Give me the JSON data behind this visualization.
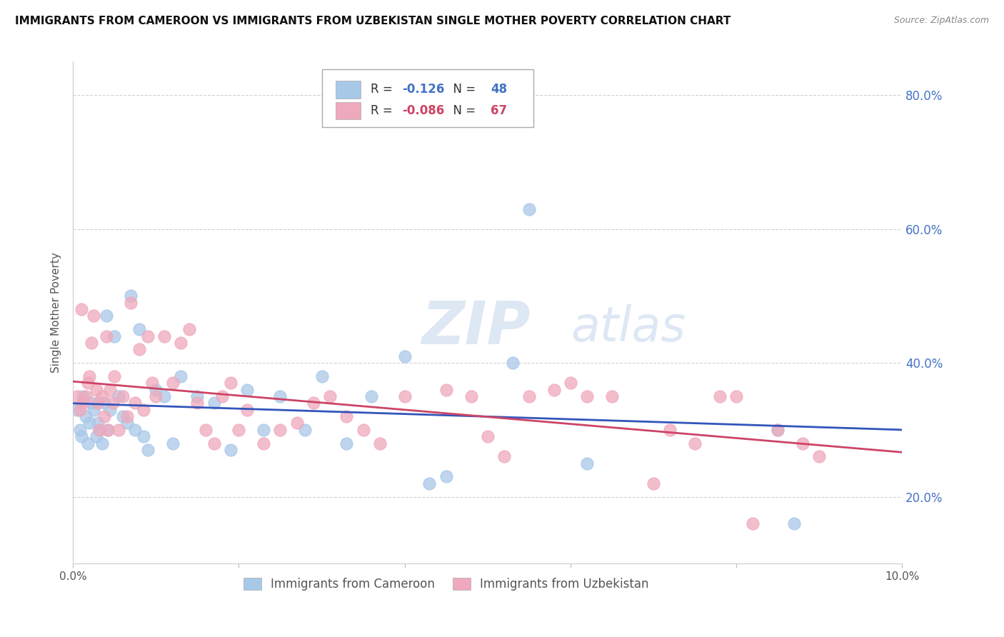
{
  "title": "IMMIGRANTS FROM CAMEROON VS IMMIGRANTS FROM UZBEKISTAN SINGLE MOTHER POVERTY CORRELATION CHART",
  "source": "Source: ZipAtlas.com",
  "ylabel": "Single Mother Poverty",
  "xlim": [
    0.0,
    10.0
  ],
  "ylim": [
    10.0,
    85.0
  ],
  "y_ticks_right": [
    20.0,
    40.0,
    60.0,
    80.0
  ],
  "y_tick_labels_right": [
    "20.0%",
    "40.0%",
    "60.0%",
    "80.0%"
  ],
  "cameroon_R": -0.126,
  "cameroon_N": 48,
  "uzbekistan_R": -0.086,
  "uzbekistan_N": 67,
  "cameroon_color": "#A8C8E8",
  "uzbekistan_color": "#F0A8BC",
  "cameroon_line_color": "#3355BB",
  "uzbekistan_line_color": "#CC4466",
  "watermark": "ZIPatlas",
  "watermark_color": "#C8D8EE",
  "legend_label_cameroon": "Immigrants from Cameroon",
  "legend_label_uzbekistan": "Immigrants from Uzbekistan",
  "cameroon_x": [
    0.05,
    0.08,
    0.1,
    0.12,
    0.15,
    0.18,
    0.2,
    0.22,
    0.25,
    0.28,
    0.3,
    0.32,
    0.35,
    0.38,
    0.4,
    0.42,
    0.45,
    0.5,
    0.55,
    0.6,
    0.65,
    0.7,
    0.75,
    0.8,
    0.85,
    0.9,
    1.0,
    1.1,
    1.2,
    1.3,
    1.5,
    1.7,
    1.9,
    2.1,
    2.3,
    2.5,
    2.8,
    3.0,
    3.3,
    3.6,
    4.0,
    4.3,
    4.5,
    5.3,
    5.5,
    6.2,
    8.5,
    8.7
  ],
  "cameroon_y": [
    33,
    30,
    29,
    35,
    32,
    28,
    31,
    34,
    33,
    29,
    31,
    30,
    28,
    34,
    47,
    30,
    33,
    44,
    35,
    32,
    31,
    50,
    30,
    45,
    29,
    27,
    36,
    35,
    28,
    38,
    35,
    34,
    27,
    36,
    30,
    35,
    30,
    38,
    28,
    35,
    41,
    22,
    23,
    40,
    63,
    25,
    30,
    16
  ],
  "uzbekistan_x": [
    0.05,
    0.08,
    0.1,
    0.12,
    0.15,
    0.18,
    0.2,
    0.22,
    0.25,
    0.28,
    0.3,
    0.32,
    0.35,
    0.38,
    0.4,
    0.42,
    0.45,
    0.48,
    0.5,
    0.55,
    0.6,
    0.65,
    0.7,
    0.75,
    0.8,
    0.85,
    0.9,
    0.95,
    1.0,
    1.1,
    1.2,
    1.3,
    1.4,
    1.5,
    1.6,
    1.7,
    1.8,
    1.9,
    2.0,
    2.1,
    2.3,
    2.5,
    2.7,
    2.9,
    3.1,
    3.3,
    3.5,
    3.7,
    4.0,
    4.5,
    4.8,
    5.0,
    5.2,
    5.5,
    5.8,
    6.0,
    6.2,
    6.5,
    7.0,
    7.2,
    7.5,
    7.8,
    8.0,
    8.2,
    8.5,
    8.8,
    9.0
  ],
  "uzbekistan_y": [
    35,
    33,
    48,
    34,
    35,
    37,
    38,
    43,
    47,
    36,
    34,
    30,
    35,
    32,
    44,
    30,
    36,
    34,
    38,
    30,
    35,
    32,
    49,
    34,
    42,
    33,
    44,
    37,
    35,
    44,
    37,
    43,
    45,
    34,
    30,
    28,
    35,
    37,
    30,
    33,
    28,
    30,
    31,
    34,
    35,
    32,
    30,
    28,
    35,
    36,
    35,
    29,
    26,
    35,
    36,
    37,
    35,
    35,
    22,
    30,
    28,
    35,
    35,
    16,
    30,
    28,
    26
  ]
}
